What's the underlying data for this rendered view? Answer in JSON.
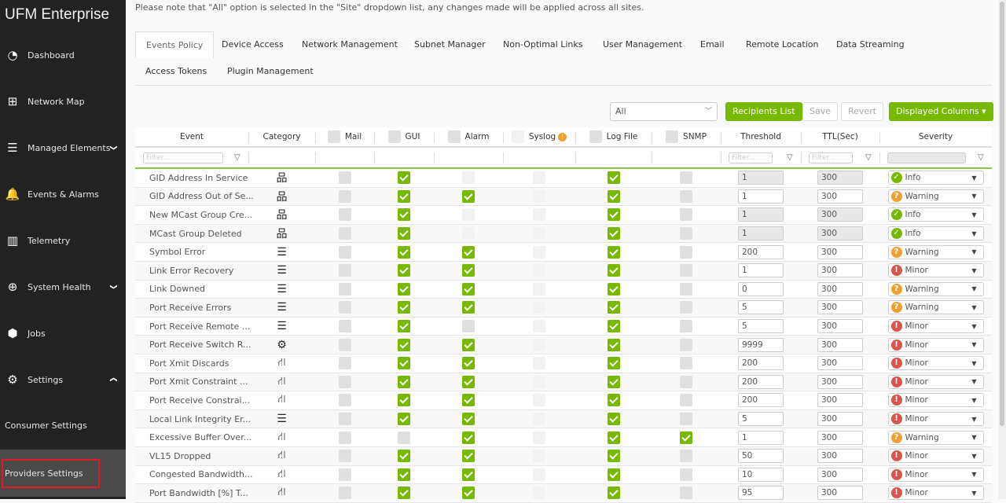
{
  "app": {
    "title": "UFM Enterprise"
  },
  "sidebar": {
    "items": [
      {
        "label": "Dashboard",
        "icon": "gauge-icon",
        "glyph": "◔"
      },
      {
        "label": "Network Map",
        "icon": "sitemap-icon",
        "glyph": "⊞"
      },
      {
        "label": "Managed Elements",
        "icon": "list-check-icon",
        "glyph": "☰",
        "chevron": "down"
      },
      {
        "label": "Events & Alarms",
        "icon": "bell-icon",
        "glyph": "🔔"
      },
      {
        "label": "Telemetry",
        "icon": "bar-chart-icon",
        "glyph": "▥"
      },
      {
        "label": "System Health",
        "icon": "medkit-icon",
        "glyph": "⊕",
        "chevron": "down"
      },
      {
        "label": "Jobs",
        "icon": "cube-icon",
        "glyph": "⬢"
      },
      {
        "label": "Settings",
        "icon": "gear-icon",
        "glyph": "⚙",
        "chevron": "up"
      },
      {
        "label": "Consumer Settings",
        "sub": true
      },
      {
        "label": "Providers Settings",
        "sub": true,
        "active": true
      }
    ]
  },
  "notice": "Please note that \"All\" option is selected in the \"Site\" dropdown list, any changes made will be applied across all sites.",
  "tabs": [
    "Events Policy",
    "Device Access",
    "Network Management",
    "Subnet Manager",
    "Non-Optimal Links",
    "User Management",
    "Email",
    "Remote Location",
    "Data Streaming",
    "Access Tokens",
    "Plugin Management"
  ],
  "active_tab": "Events Policy",
  "toolbar": {
    "site_select": "All",
    "recipients": "Recipients List",
    "save": "Save",
    "revert": "Revert",
    "columns": "Displayed Columns ▾"
  },
  "table": {
    "headers": {
      "event": "Event",
      "category": "Category",
      "mail": "Mail",
      "gui": "GUI",
      "alarm": "Alarm",
      "syslog": "Syslog",
      "logfile": "Log File",
      "snmp": "SNMP",
      "threshold": "Threshold",
      "ttl": "TTL(Sec)",
      "severity": "Severity"
    },
    "filter_placeholder": "Filter...",
    "colors": {
      "accent": "#76b900",
      "info": "#76b900",
      "warning": "#f0a030",
      "minor": "#d9534f"
    },
    "rows": [
      {
        "event": "GID Address In Service",
        "cat": "network",
        "mail": "u",
        "gui": "c",
        "alarm": "d",
        "syslog": "d",
        "log": "c",
        "snmp": "u",
        "threshold": "1",
        "thr_dis": true,
        "ttl": "300",
        "severity": "Info"
      },
      {
        "event": "GID Address Out of Se...",
        "cat": "network",
        "mail": "u",
        "gui": "c",
        "alarm": "c",
        "syslog": "d",
        "log": "c",
        "snmp": "u",
        "threshold": "1",
        "ttl": "300",
        "severity": "Warning"
      },
      {
        "event": "New MCast Group Cre...",
        "cat": "network",
        "mail": "u",
        "gui": "c",
        "alarm": "d",
        "syslog": "d",
        "log": "c",
        "snmp": "u",
        "threshold": "1",
        "thr_dis": true,
        "ttl": "300",
        "severity": "Info"
      },
      {
        "event": "MCast Group Deleted",
        "cat": "network",
        "mail": "u",
        "gui": "c",
        "alarm": "d",
        "syslog": "d",
        "log": "c",
        "snmp": "u",
        "threshold": "1",
        "thr_dis": true,
        "ttl": "300",
        "severity": "Info"
      },
      {
        "event": "Symbol Error",
        "cat": "server",
        "mail": "u",
        "gui": "c",
        "alarm": "c",
        "syslog": "d",
        "log": "c",
        "snmp": "u",
        "threshold": "200",
        "ttl": "300",
        "severity": "Warning"
      },
      {
        "event": "Link Error Recovery",
        "cat": "server",
        "mail": "u",
        "gui": "c",
        "alarm": "c",
        "syslog": "d",
        "log": "c",
        "snmp": "u",
        "threshold": "1",
        "ttl": "300",
        "severity": "Minor"
      },
      {
        "event": "Link Downed",
        "cat": "server",
        "mail": "u",
        "gui": "c",
        "alarm": "c",
        "syslog": "d",
        "log": "c",
        "snmp": "u",
        "threshold": "0",
        "ttl": "300",
        "severity": "Warning"
      },
      {
        "event": "Port Receive Errors",
        "cat": "server",
        "mail": "u",
        "gui": "c",
        "alarm": "c",
        "syslog": "d",
        "log": "c",
        "snmp": "u",
        "threshold": "5",
        "ttl": "300",
        "severity": "Warning"
      },
      {
        "event": "Port Receive Remote ...",
        "cat": "server",
        "mail": "u",
        "gui": "c",
        "alarm": "u",
        "syslog": "d",
        "log": "c",
        "snmp": "u",
        "threshold": "5",
        "ttl": "300",
        "severity": "Minor"
      },
      {
        "event": "Port Receive Switch R...",
        "cat": "cogs",
        "mail": "u",
        "gui": "c",
        "alarm": "c",
        "syslog": "d",
        "log": "c",
        "snmp": "u",
        "threshold": "9999",
        "ttl": "300",
        "severity": "Minor"
      },
      {
        "event": "Port Xmit Discards",
        "cat": "link",
        "mail": "u",
        "gui": "c",
        "alarm": "c",
        "syslog": "d",
        "log": "c",
        "snmp": "u",
        "threshold": "200",
        "ttl": "300",
        "severity": "Minor"
      },
      {
        "event": "Port Xmit Constraint ...",
        "cat": "link",
        "mail": "u",
        "gui": "c",
        "alarm": "c",
        "syslog": "d",
        "log": "c",
        "snmp": "u",
        "threshold": "200",
        "ttl": "300",
        "severity": "Minor"
      },
      {
        "event": "Port Receive Constrai...",
        "cat": "link",
        "mail": "u",
        "gui": "c",
        "alarm": "c",
        "syslog": "d",
        "log": "c",
        "snmp": "u",
        "threshold": "200",
        "ttl": "300",
        "severity": "Minor"
      },
      {
        "event": "Local Link Integrity Er...",
        "cat": "server",
        "mail": "u",
        "gui": "c",
        "alarm": "c",
        "syslog": "d",
        "log": "c",
        "snmp": "u",
        "threshold": "5",
        "ttl": "300",
        "severity": "Minor"
      },
      {
        "event": "Excessive Buffer Over...",
        "cat": "link",
        "mail": "u",
        "gui": "u",
        "alarm": "c",
        "syslog": "d",
        "log": "c",
        "snmp": "c",
        "threshold": "1",
        "ttl": "300",
        "severity": "Warning"
      },
      {
        "event": "VL15 Dropped",
        "cat": "link",
        "mail": "u",
        "gui": "c",
        "alarm": "c",
        "syslog": "d",
        "log": "c",
        "snmp": "u",
        "threshold": "50",
        "ttl": "300",
        "severity": "Minor"
      },
      {
        "event": "Congested Bandwidth...",
        "cat": "link",
        "mail": "u",
        "gui": "c",
        "alarm": "c",
        "syslog": "d",
        "log": "c",
        "snmp": "u",
        "threshold": "10",
        "ttl": "300",
        "severity": "Minor"
      },
      {
        "event": "Port Bandwidth [%] T...",
        "cat": "link",
        "mail": "u",
        "gui": "c",
        "alarm": "c",
        "syslog": "d",
        "log": "c",
        "snmp": "u",
        "threshold": "95",
        "ttl": "300",
        "severity": "Minor"
      }
    ]
  }
}
